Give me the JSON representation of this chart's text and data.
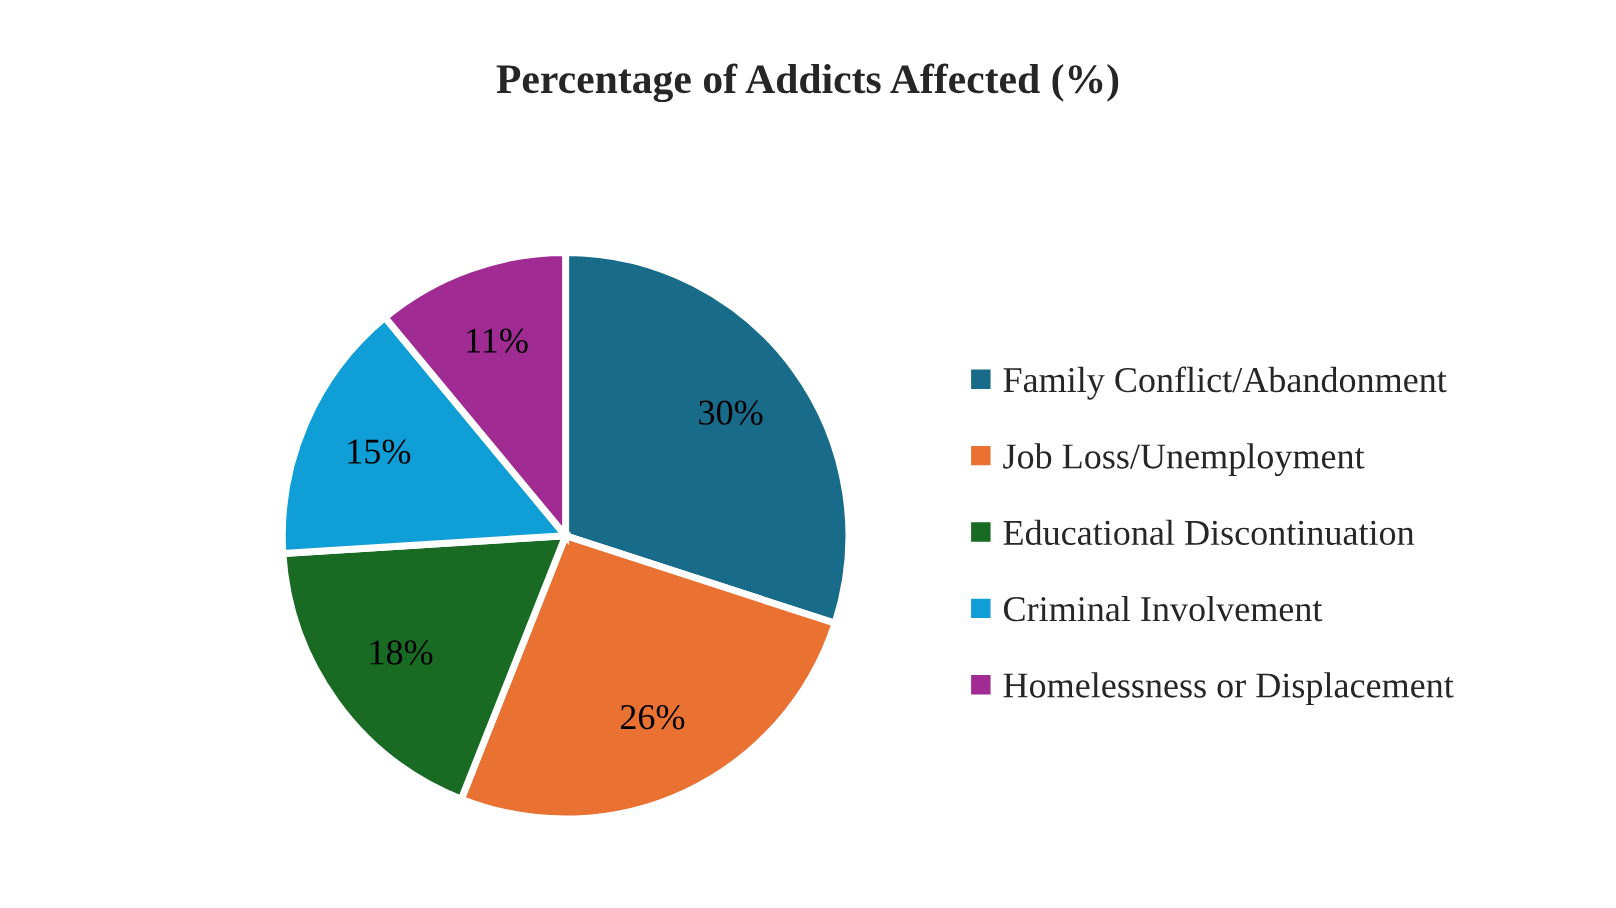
{
  "chart_data": {
    "type": "pie",
    "title": "Percentage of Addicts Affected (%)",
    "categories": [
      "Family Conflict/Abandonment",
      "Job Loss/Unemployment",
      "Educational Discontinuation",
      "Criminal Involvement",
      "Homelessness or Displacement"
    ],
    "values": [
      30,
      26,
      18,
      15,
      11
    ],
    "colors": [
      "#196b8a",
      "#e97132",
      "#196b24",
      "#0f9ed5",
      "#a02b93"
    ],
    "value_labels": [
      "30%",
      "26%",
      "18%",
      "15%",
      "11%"
    ],
    "legend": "right"
  }
}
